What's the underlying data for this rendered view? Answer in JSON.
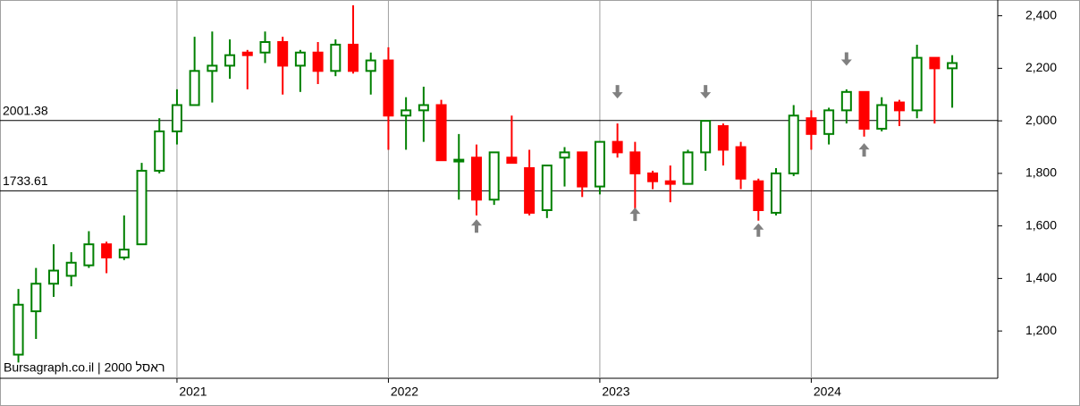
{
  "chart_data": {
    "type": "candlestick",
    "watermark": "Bursagraph.co.il | 2000 ראסל",
    "up_color": "#008000",
    "down_color": "#ff0000",
    "arrow_color": "#808080",
    "x": [
      2020.25,
      2020.3333,
      2020.4167,
      2020.5,
      2020.5833,
      2020.6667,
      2020.75,
      2020.8333,
      2020.9167,
      2021.0,
      2021.0833,
      2021.1667,
      2021.25,
      2021.3333,
      2021.4167,
      2021.5,
      2021.5833,
      2021.6667,
      2021.75,
      2021.8333,
      2021.9167,
      2022.0,
      2022.0833,
      2022.1667,
      2022.25,
      2022.3333,
      2022.4167,
      2022.5,
      2022.5833,
      2022.6667,
      2022.75,
      2022.8333,
      2022.9167,
      2023.0,
      2023.0833,
      2023.1667,
      2023.25,
      2023.3333,
      2023.4167,
      2023.5,
      2023.5833,
      2023.6667,
      2023.75,
      2023.8333,
      2023.9167,
      2024.0,
      2024.0833,
      2024.1667,
      2024.25,
      2024.3333,
      2024.4167,
      2024.5,
      2024.5833,
      2024.6667
    ],
    "open": [
      1110,
      1275,
      1380,
      1410,
      1450,
      1530,
      1480,
      1530,
      1810,
      1960,
      2060,
      2190,
      2210,
      2260,
      2260,
      2300,
      2210,
      2260,
      2190,
      2290,
      2190,
      2230,
      2020,
      2040,
      2060,
      1850,
      1860,
      1700,
      1860,
      1820,
      1660,
      1860,
      1880,
      1750,
      1920,
      1880,
      1800,
      1770,
      1760,
      1880,
      1980,
      1900,
      1770,
      1650,
      1800,
      2010,
      1950,
      2040,
      2110,
      1970,
      2070,
      2040,
      2240,
      2200
    ],
    "high": [
      1360,
      1440,
      1530,
      1500,
      1580,
      1540,
      1640,
      1840,
      2010,
      2120,
      2320,
      2340,
      2310,
      2270,
      2340,
      2320,
      2270,
      2300,
      2310,
      2440,
      2260,
      2280,
      2090,
      2130,
      2080,
      1950,
      1910,
      1880,
      2020,
      1890,
      1830,
      1900,
      1880,
      1920,
      1990,
      1920,
      1810,
      1830,
      1890,
      2000,
      1990,
      1920,
      1780,
      1820,
      2060,
      2040,
      2050,
      2120,
      2110,
      2090,
      2080,
      2290,
      2240,
      2250
    ],
    "low": [
      1080,
      1170,
      1330,
      1370,
      1440,
      1420,
      1470,
      1530,
      1800,
      1910,
      2060,
      2070,
      2160,
      2120,
      2220,
      2100,
      2110,
      2140,
      2170,
      2180,
      2100,
      1890,
      1890,
      1920,
      1850,
      1700,
      1640,
      1680,
      1840,
      1640,
      1630,
      1750,
      1710,
      1720,
      1860,
      1660,
      1740,
      1690,
      1760,
      1810,
      1830,
      1740,
      1620,
      1640,
      1790,
      1890,
      1910,
      1990,
      1940,
      1960,
      1980,
      2010,
      1990,
      2050
    ],
    "close": [
      1300,
      1380,
      1430,
      1460,
      1530,
      1480,
      1510,
      1810,
      1960,
      2060,
      2190,
      2210,
      2250,
      2250,
      2300,
      2210,
      2260,
      2190,
      2290,
      2190,
      2230,
      2020,
      2040,
      2060,
      1850,
      1852,
      1700,
      1880,
      1840,
      1650,
      1830,
      1880,
      1750,
      1920,
      1880,
      1800,
      1770,
      1760,
      1880,
      2000,
      1890,
      1780,
      1660,
      1800,
      2020,
      1950,
      2040,
      2110,
      1970,
      2060,
      2040,
      2240,
      2200,
      2220
    ],
    "hlines": [
      2001.38,
      1733.61
    ],
    "arrows": [
      {
        "x": 2022.4167,
        "y": 1625,
        "direction": "up"
      },
      {
        "x": 2023.0833,
        "y": 2085,
        "direction": "down"
      },
      {
        "x": 2023.1667,
        "y": 1670,
        "direction": "up"
      },
      {
        "x": 2023.5,
        "y": 2085,
        "direction": "down"
      },
      {
        "x": 2023.75,
        "y": 1610,
        "direction": "up"
      },
      {
        "x": 2024.1667,
        "y": 2210,
        "direction": "down"
      },
      {
        "x": 2024.25,
        "y": 1915,
        "direction": "up"
      }
    ],
    "xlim": [
      2020.163,
      2024.882
    ],
    "xticks": [
      2021,
      2022,
      2023,
      2024
    ],
    "ylim": [
      1020,
      2460
    ],
    "yticks": [
      {
        "value": 1200,
        "label": "1,200"
      },
      {
        "value": 1400,
        "label": "1,400"
      },
      {
        "value": 1600,
        "label": "1,600"
      },
      {
        "value": 1800,
        "label": "1,800"
      },
      {
        "value": 2000,
        "label": "2,000"
      },
      {
        "value": 2200,
        "label": "2,200"
      },
      {
        "value": 2400,
        "label": "2,400"
      }
    ],
    "grid": true
  }
}
